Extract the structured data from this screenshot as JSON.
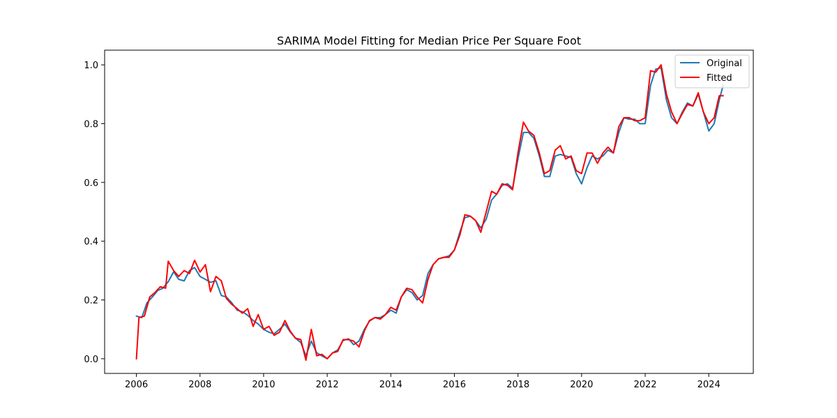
{
  "chart_data": {
    "type": "line",
    "title": "SARIMA Model Fitting for Median Price Per Square Foot",
    "xlabel": "",
    "ylabel": "",
    "xlim": [
      2005.0,
      2025.4
    ],
    "ylim": [
      -0.05,
      1.05
    ],
    "x_ticks": [
      "2006",
      "2008",
      "2010",
      "2012",
      "2014",
      "2016",
      "2018",
      "2020",
      "2022",
      "2024"
    ],
    "y_ticks": [
      "0.0",
      "0.2",
      "0.4",
      "0.6",
      "0.8",
      "1.0"
    ],
    "legend_position": "upper right",
    "grid": false,
    "series": [
      {
        "name": "Original",
        "color": "#1f77b4",
        "points": [
          [
            2006.0,
            0.145
          ],
          [
            2006.17,
            0.14
          ],
          [
            2006.33,
            0.19
          ],
          [
            2006.5,
            0.21
          ],
          [
            2006.67,
            0.232
          ],
          [
            2006.83,
            0.24
          ],
          [
            2007.0,
            0.262
          ],
          [
            2007.17,
            0.296
          ],
          [
            2007.33,
            0.27
          ],
          [
            2007.5,
            0.265
          ],
          [
            2007.67,
            0.3
          ],
          [
            2007.83,
            0.31
          ],
          [
            2008.0,
            0.28
          ],
          [
            2008.17,
            0.27
          ],
          [
            2008.33,
            0.26
          ],
          [
            2008.5,
            0.265
          ],
          [
            2008.67,
            0.215
          ],
          [
            2008.83,
            0.21
          ],
          [
            2009.0,
            0.19
          ],
          [
            2009.17,
            0.165
          ],
          [
            2009.33,
            0.16
          ],
          [
            2009.5,
            0.148
          ],
          [
            2009.67,
            0.13
          ],
          [
            2009.83,
            0.118
          ],
          [
            2010.0,
            0.1
          ],
          [
            2010.17,
            0.09
          ],
          [
            2010.33,
            0.085
          ],
          [
            2010.5,
            0.1
          ],
          [
            2010.67,
            0.118
          ],
          [
            2010.83,
            0.092
          ],
          [
            2011.0,
            0.07
          ],
          [
            2011.17,
            0.055
          ],
          [
            2011.33,
            0.01
          ],
          [
            2011.5,
            0.06
          ],
          [
            2011.67,
            0.02
          ],
          [
            2011.83,
            0.01
          ],
          [
            2012.0,
            0.0
          ],
          [
            2012.17,
            0.02
          ],
          [
            2012.33,
            0.03
          ],
          [
            2012.5,
            0.062
          ],
          [
            2012.67,
            0.068
          ],
          [
            2012.83,
            0.048
          ],
          [
            2013.0,
            0.06
          ],
          [
            2013.17,
            0.1
          ],
          [
            2013.33,
            0.128
          ],
          [
            2013.5,
            0.14
          ],
          [
            2013.67,
            0.14
          ],
          [
            2013.83,
            0.15
          ],
          [
            2014.0,
            0.165
          ],
          [
            2014.17,
            0.155
          ],
          [
            2014.33,
            0.21
          ],
          [
            2014.5,
            0.235
          ],
          [
            2014.67,
            0.225
          ],
          [
            2014.83,
            0.2
          ],
          [
            2015.0,
            0.215
          ],
          [
            2015.17,
            0.29
          ],
          [
            2015.33,
            0.32
          ],
          [
            2015.5,
            0.34
          ],
          [
            2015.67,
            0.345
          ],
          [
            2015.83,
            0.35
          ],
          [
            2016.0,
            0.37
          ],
          [
            2016.17,
            0.43
          ],
          [
            2016.33,
            0.48
          ],
          [
            2016.5,
            0.485
          ],
          [
            2016.67,
            0.47
          ],
          [
            2016.83,
            0.445
          ],
          [
            2017.0,
            0.475
          ],
          [
            2017.17,
            0.54
          ],
          [
            2017.33,
            0.56
          ],
          [
            2017.5,
            0.59
          ],
          [
            2017.67,
            0.595
          ],
          [
            2017.83,
            0.58
          ],
          [
            2018.0,
            0.68
          ],
          [
            2018.17,
            0.77
          ],
          [
            2018.33,
            0.77
          ],
          [
            2018.5,
            0.75
          ],
          [
            2018.67,
            0.69
          ],
          [
            2018.83,
            0.62
          ],
          [
            2019.0,
            0.62
          ],
          [
            2019.17,
            0.69
          ],
          [
            2019.33,
            0.695
          ],
          [
            2019.5,
            0.69
          ],
          [
            2019.67,
            0.685
          ],
          [
            2019.83,
            0.63
          ],
          [
            2020.0,
            0.595
          ],
          [
            2020.17,
            0.65
          ],
          [
            2020.33,
            0.69
          ],
          [
            2020.5,
            0.68
          ],
          [
            2020.67,
            0.69
          ],
          [
            2020.83,
            0.71
          ],
          [
            2021.0,
            0.7
          ],
          [
            2021.17,
            0.77
          ],
          [
            2021.33,
            0.82
          ],
          [
            2021.5,
            0.815
          ],
          [
            2021.67,
            0.815
          ],
          [
            2021.83,
            0.8
          ],
          [
            2022.0,
            0.8
          ],
          [
            2022.17,
            0.93
          ],
          [
            2022.33,
            0.985
          ],
          [
            2022.5,
            0.99
          ],
          [
            2022.67,
            0.88
          ],
          [
            2022.83,
            0.82
          ],
          [
            2023.0,
            0.8
          ],
          [
            2023.17,
            0.84
          ],
          [
            2023.33,
            0.87
          ],
          [
            2023.5,
            0.86
          ],
          [
            2023.67,
            0.9
          ],
          [
            2023.83,
            0.84
          ],
          [
            2024.0,
            0.775
          ],
          [
            2024.17,
            0.8
          ],
          [
            2024.33,
            0.88
          ],
          [
            2024.45,
            0.93
          ]
        ]
      },
      {
        "name": "Fitted",
        "color": "#ff0000",
        "points": [
          [
            2006.0,
            0.0
          ],
          [
            2006.08,
            0.14
          ],
          [
            2006.25,
            0.145
          ],
          [
            2006.42,
            0.21
          ],
          [
            2006.58,
            0.225
          ],
          [
            2006.75,
            0.245
          ],
          [
            2006.92,
            0.24
          ],
          [
            2007.0,
            0.332
          ],
          [
            2007.17,
            0.3
          ],
          [
            2007.33,
            0.28
          ],
          [
            2007.5,
            0.3
          ],
          [
            2007.67,
            0.29
          ],
          [
            2007.83,
            0.335
          ],
          [
            2008.0,
            0.295
          ],
          [
            2008.17,
            0.32
          ],
          [
            2008.33,
            0.228
          ],
          [
            2008.5,
            0.28
          ],
          [
            2008.67,
            0.265
          ],
          [
            2008.83,
            0.205
          ],
          [
            2009.0,
            0.185
          ],
          [
            2009.17,
            0.17
          ],
          [
            2009.33,
            0.155
          ],
          [
            2009.5,
            0.17
          ],
          [
            2009.67,
            0.11
          ],
          [
            2009.83,
            0.15
          ],
          [
            2010.0,
            0.1
          ],
          [
            2010.17,
            0.11
          ],
          [
            2010.33,
            0.08
          ],
          [
            2010.5,
            0.09
          ],
          [
            2010.67,
            0.13
          ],
          [
            2010.83,
            0.095
          ],
          [
            2011.0,
            0.07
          ],
          [
            2011.17,
            0.065
          ],
          [
            2011.33,
            -0.005
          ],
          [
            2011.5,
            0.1
          ],
          [
            2011.67,
            0.01
          ],
          [
            2011.83,
            0.015
          ],
          [
            2012.0,
            0.0
          ],
          [
            2012.17,
            0.02
          ],
          [
            2012.33,
            0.025
          ],
          [
            2012.5,
            0.065
          ],
          [
            2012.67,
            0.065
          ],
          [
            2012.83,
            0.06
          ],
          [
            2013.0,
            0.04
          ],
          [
            2013.17,
            0.095
          ],
          [
            2013.33,
            0.13
          ],
          [
            2013.5,
            0.14
          ],
          [
            2013.67,
            0.135
          ],
          [
            2013.83,
            0.15
          ],
          [
            2014.0,
            0.175
          ],
          [
            2014.17,
            0.165
          ],
          [
            2014.33,
            0.21
          ],
          [
            2014.5,
            0.24
          ],
          [
            2014.67,
            0.235
          ],
          [
            2014.83,
            0.21
          ],
          [
            2015.0,
            0.19
          ],
          [
            2015.17,
            0.27
          ],
          [
            2015.33,
            0.32
          ],
          [
            2015.5,
            0.34
          ],
          [
            2015.67,
            0.345
          ],
          [
            2015.83,
            0.345
          ],
          [
            2016.0,
            0.37
          ],
          [
            2016.17,
            0.42
          ],
          [
            2016.33,
            0.49
          ],
          [
            2016.5,
            0.485
          ],
          [
            2016.67,
            0.47
          ],
          [
            2016.83,
            0.43
          ],
          [
            2017.0,
            0.5
          ],
          [
            2017.17,
            0.57
          ],
          [
            2017.33,
            0.56
          ],
          [
            2017.5,
            0.595
          ],
          [
            2017.67,
            0.59
          ],
          [
            2017.83,
            0.575
          ],
          [
            2018.0,
            0.7
          ],
          [
            2018.17,
            0.805
          ],
          [
            2018.33,
            0.775
          ],
          [
            2018.5,
            0.76
          ],
          [
            2018.67,
            0.7
          ],
          [
            2018.83,
            0.63
          ],
          [
            2019.0,
            0.64
          ],
          [
            2019.17,
            0.71
          ],
          [
            2019.33,
            0.725
          ],
          [
            2019.5,
            0.68
          ],
          [
            2019.67,
            0.69
          ],
          [
            2019.83,
            0.64
          ],
          [
            2020.0,
            0.63
          ],
          [
            2020.17,
            0.7
          ],
          [
            2020.33,
            0.7
          ],
          [
            2020.5,
            0.665
          ],
          [
            2020.67,
            0.7
          ],
          [
            2020.83,
            0.72
          ],
          [
            2021.0,
            0.7
          ],
          [
            2021.17,
            0.79
          ],
          [
            2021.33,
            0.82
          ],
          [
            2021.5,
            0.82
          ],
          [
            2021.67,
            0.81
          ],
          [
            2021.83,
            0.81
          ],
          [
            2022.0,
            0.82
          ],
          [
            2022.17,
            0.98
          ],
          [
            2022.33,
            0.975
          ],
          [
            2022.5,
            1.0
          ],
          [
            2022.67,
            0.9
          ],
          [
            2022.83,
            0.84
          ],
          [
            2023.0,
            0.8
          ],
          [
            2023.17,
            0.835
          ],
          [
            2023.33,
            0.865
          ],
          [
            2023.5,
            0.86
          ],
          [
            2023.67,
            0.905
          ],
          [
            2023.83,
            0.84
          ],
          [
            2024.0,
            0.8
          ],
          [
            2024.17,
            0.82
          ],
          [
            2024.33,
            0.895
          ],
          [
            2024.45,
            0.895
          ]
        ]
      }
    ]
  }
}
